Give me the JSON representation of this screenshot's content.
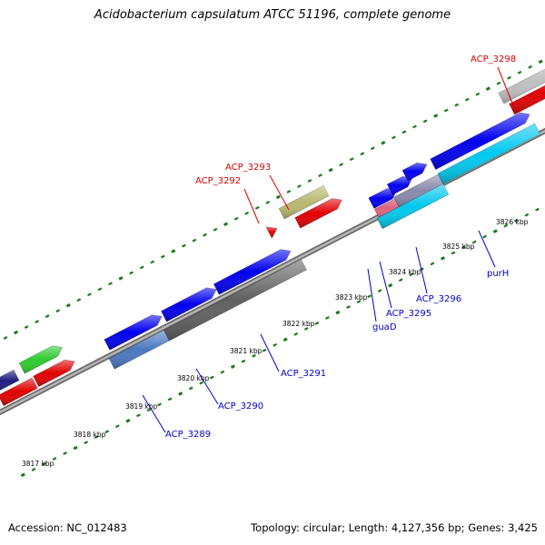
{
  "title": "Acidobacterium capsulatum ATCC 51196, complete genome",
  "footer": {
    "accession": "Accession: NC_012483",
    "topology": "Topology: circular; Length: 4,127,356 bp; Genes: 3,425"
  },
  "colors": {
    "forward_label": "#0000cc",
    "reverse_label": "#dd0000",
    "backbone": "#888888",
    "tick": "#1a7a1a"
  },
  "ticks": [
    "3817 kbp",
    "3818 kbp",
    "3819 kbp",
    "3820 kbp",
    "3821 kbp",
    "3822 kbp",
    "3823 kbp",
    "3824 kbp",
    "3825 kbp",
    "3826 kbp"
  ],
  "gene_labels": [
    {
      "text": "ACP_3289",
      "strand": "forward"
    },
    {
      "text": "ACP_3290",
      "strand": "forward"
    },
    {
      "text": "ACP_3291",
      "strand": "forward"
    },
    {
      "text": "guaD",
      "strand": "forward"
    },
    {
      "text": "ACP_3295",
      "strand": "forward"
    },
    {
      "text": "ACP_3296",
      "strand": "forward"
    },
    {
      "text": "purH",
      "strand": "forward"
    },
    {
      "text": "ACP_3292",
      "strand": "reverse"
    },
    {
      "text": "ACP_3293",
      "strand": "reverse"
    },
    {
      "text": "ACP_3298",
      "strand": "reverse"
    }
  ]
}
